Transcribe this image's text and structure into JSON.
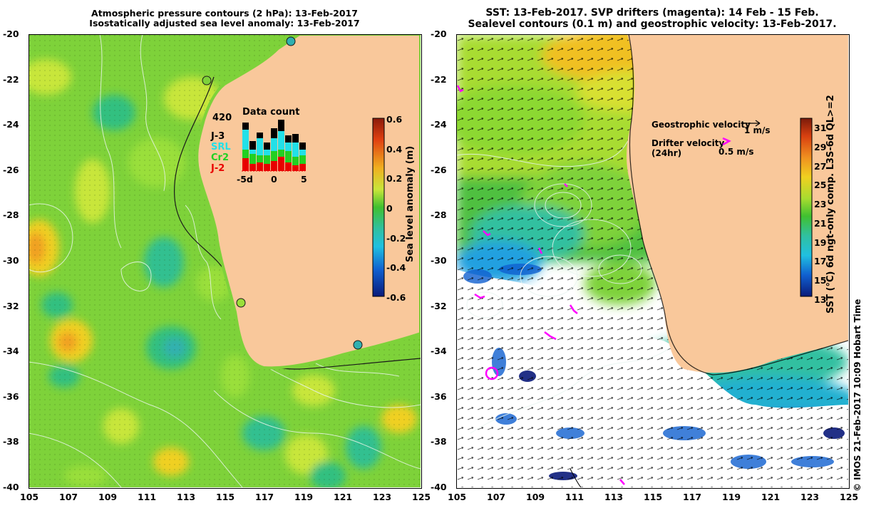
{
  "left_panel": {
    "title_line1": "Atmospheric pressure contours (2 hPa): 13-Feb-2017",
    "title_line2": "Isostatically adjusted sea level anomaly: 13-Feb-2017",
    "colorbar": {
      "label": "Sea level anomaly (m)",
      "ticks": [
        "0.6",
        "0.4",
        "0.2",
        "0",
        "-0.2",
        "-0.4",
        "-0.6"
      ]
    },
    "data_count": {
      "title": "Data count",
      "max_label": "420",
      "legend": [
        {
          "name": "J-3",
          "color": "#000000"
        },
        {
          "name": "SRL",
          "color": "#22e0e8"
        },
        {
          "name": "Cr2",
          "color": "#22d022"
        },
        {
          "name": "J-2",
          "color": "#e80000"
        }
      ],
      "x_ticks": [
        "-5d",
        "0",
        "5"
      ]
    }
  },
  "right_panel": {
    "title_line1": "SST: 13-Feb-2017. SVP drifters (magenta): 14 Feb - 15 Feb.",
    "title_line2": "Sealevel contours (0.1 m) and geostrophic velocity: 13-Feb-2017.",
    "colorbar": {
      "label": "SST (°C) 6d ngt-only comp. L3S-6d QL>=2",
      "ticks": [
        "31",
        "29",
        "27",
        "25",
        "23",
        "21",
        "19",
        "17",
        "15",
        "13"
      ]
    },
    "legend": {
      "geo_label": "Geostrophic velocity",
      "geo_scale": "1 m/s",
      "drifter_label_1": "Drifter velocity",
      "drifter_label_2": "(24hr)",
      "drifter_scale": "0.5 m/s"
    },
    "footer": "© IMOS 21-Feb-2017 10:09 Hobart Time"
  },
  "axes": {
    "lat_ticks": [
      "-20",
      "-22",
      "-24",
      "-26",
      "-28",
      "-30",
      "-32",
      "-34",
      "-36",
      "-38",
      "-40"
    ],
    "lon_ticks": [
      "105",
      "107",
      "109",
      "111",
      "113",
      "115",
      "117",
      "119",
      "121",
      "123",
      "125"
    ]
  },
  "colors": {
    "land": "#f9c89b",
    "sla_base": "#7ed23a",
    "sst_white": "#ffffff",
    "drifter": "#ff00ff"
  }
}
